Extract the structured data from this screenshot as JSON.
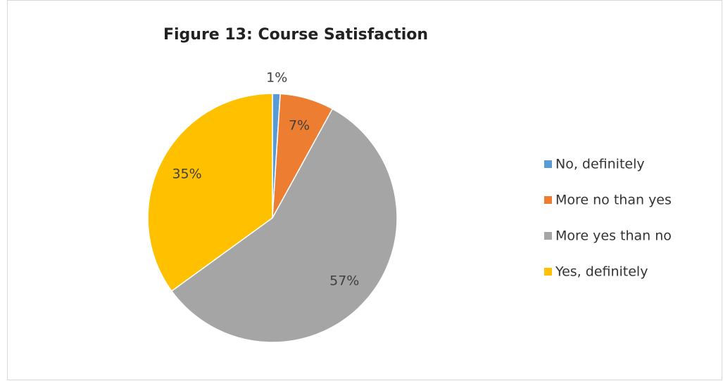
{
  "chart_data": {
    "type": "pie",
    "title": "Figure 13: Course Satisfaction",
    "categories": [
      "No, definitely",
      "More no than yes",
      "More yes than no",
      "Yes, definitely"
    ],
    "values": [
      1,
      7,
      57,
      35
    ],
    "value_labels": [
      "1%",
      "7%",
      "57%",
      "35%"
    ],
    "colors": [
      "#5b9bd5",
      "#ed7d31",
      "#a5a5a5",
      "#ffc000"
    ],
    "legend": "right"
  }
}
